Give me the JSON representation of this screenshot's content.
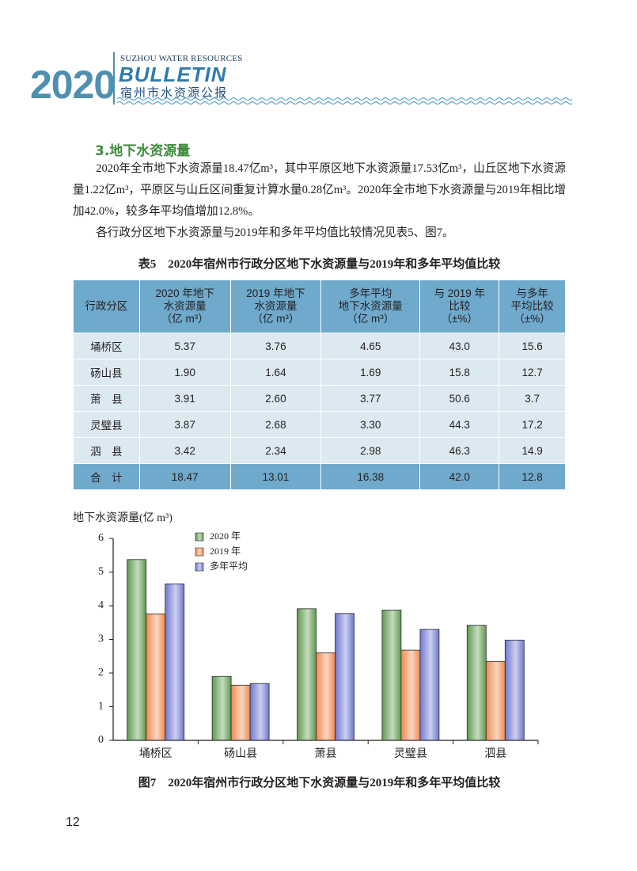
{
  "header": {
    "year": "2020",
    "subtitle_en": "SUZHOU WATER RESOURCES",
    "title_en": "BULLETIN",
    "title_cn": "宿州市水资源公报"
  },
  "section": {
    "heading": "3.地下水资源量",
    "paragraphs": [
      "2020年全市地下水资源量18.47亿m³，其中平原区地下水资源量17.53亿m³，山丘区地下水资源量1.22亿m³，平原区与山丘区间重复计算水量0.28亿m³。2020年全市地下水资源量与2019年相比增加42.0%，较多年平均值增加12.8%。",
      "各行政分区地下水资源量与2019年和多年平均值比较情况见表5、图7。"
    ]
  },
  "table": {
    "caption": "表5　2020年宿州市行政分区地下水资源量与2019年和多年平均值比较",
    "header": [
      "行政分区",
      "2020 年地下\n水资源量\n（亿 m³）",
      "2019 年地下\n水资源量\n（亿 m³）",
      "多年平均\n地下水资源量\n（亿 m³）",
      "与 2019 年\n比较\n（±%）",
      "与多年\n平均比较\n（±%）"
    ],
    "rows": [
      [
        "埇桥区",
        "5.37",
        "3.76",
        "4.65",
        "43.0",
        "15.6"
      ],
      [
        "砀山县",
        "1.90",
        "1.64",
        "1.69",
        "15.8",
        "12.7"
      ],
      [
        "萧　县",
        "3.91",
        "2.60",
        "3.77",
        "50.6",
        "3.7"
      ],
      [
        "灵璧县",
        "3.87",
        "2.68",
        "3.30",
        "44.3",
        "17.2"
      ],
      [
        "泗　县",
        "3.42",
        "2.34",
        "2.98",
        "46.3",
        "14.9"
      ],
      [
        "合　计",
        "18.47",
        "13.01",
        "16.38",
        "42.0",
        "12.8"
      ]
    ]
  },
  "chart_data": {
    "type": "bar",
    "y_label": "地下水资源量(亿 m³)",
    "categories": [
      "埇桥区",
      "砀山县",
      "萧县",
      "灵璧县",
      "泗县"
    ],
    "series": [
      {
        "name": "2020 年",
        "color": "#5e9a4e",
        "values": [
          5.37,
          1.9,
          3.91,
          3.87,
          3.42
        ]
      },
      {
        "name": "2019 年",
        "color": "#f08a50",
        "values": [
          3.76,
          1.64,
          2.6,
          2.68,
          2.34
        ]
      },
      {
        "name": "多年平均",
        "color": "#6f78d0",
        "values": [
          4.65,
          1.69,
          3.77,
          3.3,
          2.98
        ]
      }
    ],
    "ylim": [
      0,
      6
    ],
    "yticks": [
      0,
      1,
      2,
      3,
      4,
      5,
      6
    ],
    "grid": false,
    "legend": "top-left"
  },
  "figure_caption": "图7　2020年宿州市行政分区地下水资源量与2019年和多年平均值比较",
  "page_number": "12"
}
